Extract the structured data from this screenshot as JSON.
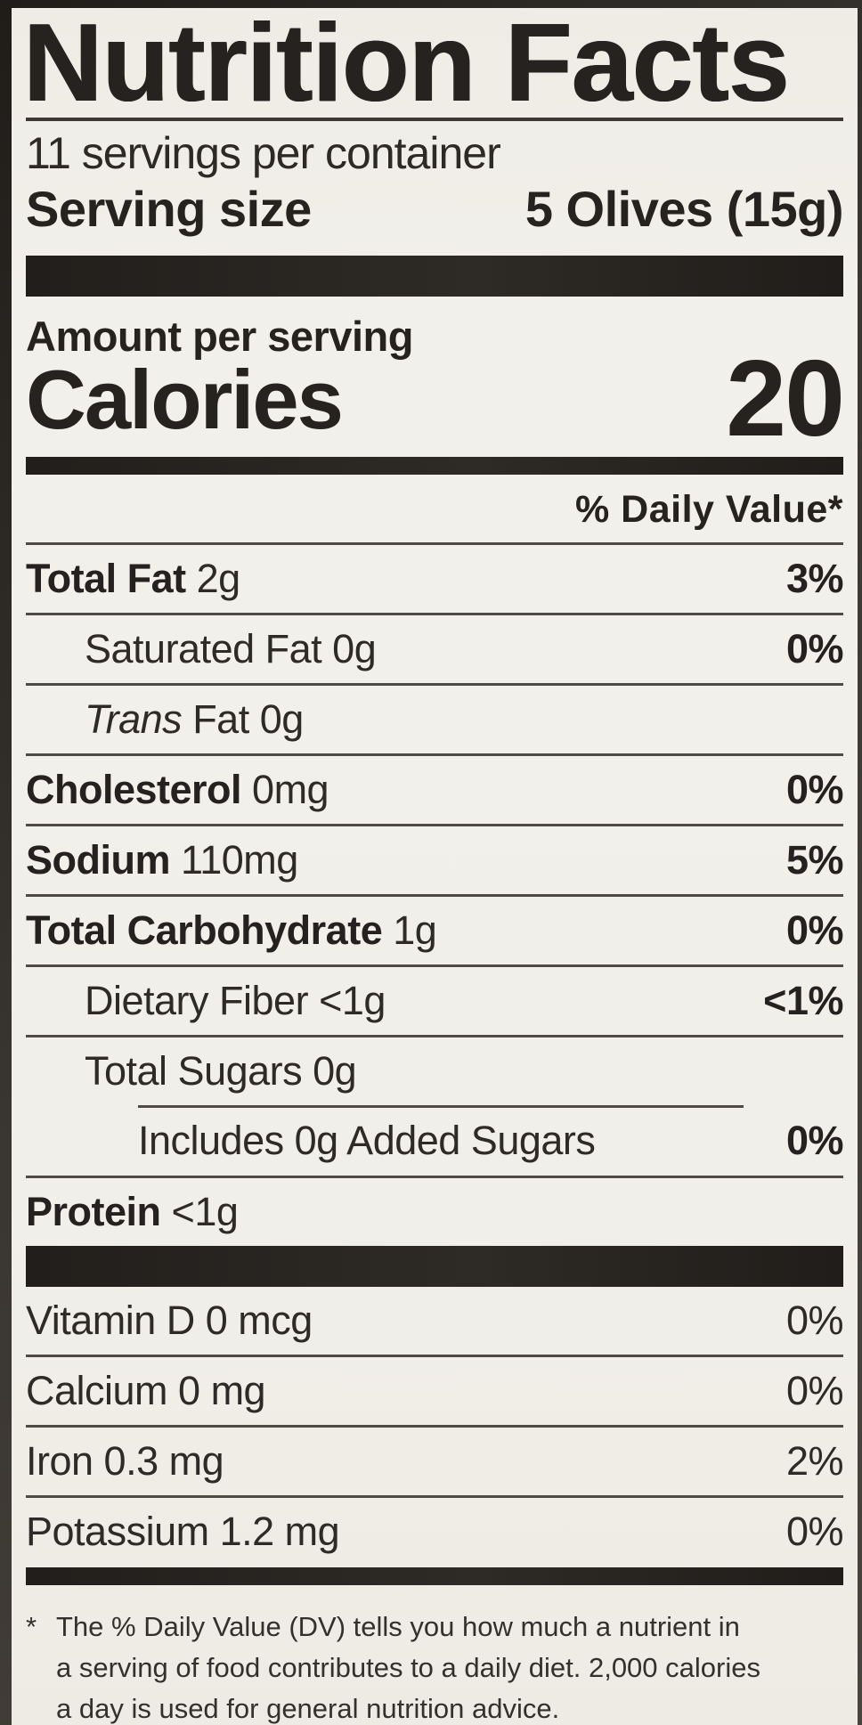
{
  "label": {
    "title": "Nutrition Facts",
    "servings_per_container": "11 servings per container",
    "serving_size_label": "Serving size",
    "serving_size_value": "5 Olives (15g)",
    "amount_per_serving": "Amount per serving",
    "calories_label": "Calories",
    "calories_value": "20",
    "daily_value_header": "% Daily Value*",
    "nutrients": [
      {
        "b": "Total Fat",
        "i": "",
        "r": " 2g",
        "dv": "3%"
      },
      {
        "b": "",
        "i": "",
        "r": "Saturated Fat 0g",
        "dv": "0%"
      },
      {
        "b": "",
        "i": "Trans",
        "r": " Fat 0g",
        "dv": ""
      },
      {
        "b": "Cholesterol",
        "i": "",
        "r": " 0mg",
        "dv": "0%"
      },
      {
        "b": "Sodium",
        "i": "",
        "r": " 110mg",
        "dv": "5%"
      },
      {
        "b": "Total Carbohydrate",
        "i": "",
        "r": " 1g",
        "dv": "0%"
      },
      {
        "b": "",
        "i": "",
        "r": "Dietary Fiber <1g",
        "dv": "<1%"
      },
      {
        "b": "",
        "i": "",
        "r": "Total Sugars 0g",
        "dv": ""
      },
      {
        "b": "",
        "i": "",
        "r": "Includes 0g Added Sugars",
        "dv": "0%"
      },
      {
        "b": "Protein",
        "i": "",
        "r": " <1g",
        "dv": ""
      }
    ],
    "micronutrients": [
      {
        "r": "Vitamin D 0 mcg",
        "dv": "0%"
      },
      {
        "r": "Calcium 0 mg",
        "dv": "0%"
      },
      {
        "r": "Iron 0.3 mg",
        "dv": "2%"
      },
      {
        "r": "Potassium 1.2 mg",
        "dv": "0%"
      }
    ],
    "footnote_marker": "*",
    "footnote_lines": [
      "The % Daily Value (DV) tells you how much a nutrient in",
      "a serving of food contributes to a daily diet. 2,000 calories",
      "a day is used for general nutrition advice."
    ],
    "colors": {
      "paper": "#f1efe9",
      "ink": "#262220",
      "rule": "#4e4a44",
      "bar": "#282421"
    }
  }
}
